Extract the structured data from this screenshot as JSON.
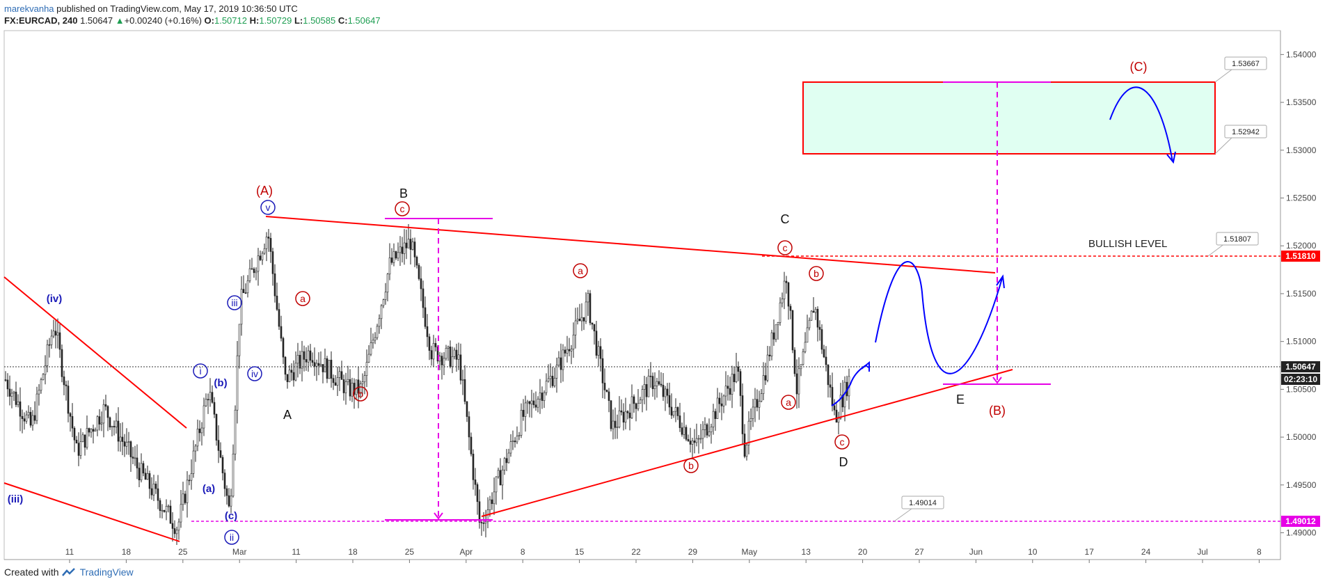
{
  "header": {
    "user": "marekvanha",
    "published": " published on TradingView.com, May 17, 2019 10:36:50 UTC",
    "symbol": "FX:EURCAD, 240",
    "last": "1.50647",
    "change": "+0.00240 (+0.16%)",
    "o_label": "O:",
    "o_val": "1.50712",
    "h_label": "H:",
    "h_val": "1.50729",
    "l_label": "L:",
    "l_val": "1.50585",
    "c_label": "C:",
    "c_val": "1.50647"
  },
  "footer": {
    "created": "Created with",
    "brand": "TradingView"
  },
  "colors": {
    "red": "#ff0000",
    "magenta": "#e600e6",
    "blue": "#0000ff",
    "target_fill": "#e0fff2"
  },
  "chart_data": {
    "type": "candlestick",
    "instrument": "FX:EURCAD",
    "interval": "240",
    "ylim": [
      1.4872,
      1.5425
    ],
    "y_ticks": [
      "1.54000",
      "1.53500",
      "1.53000",
      "1.52500",
      "1.52000",
      "1.51500",
      "1.51000",
      "1.50500",
      "1.50000",
      "1.49500",
      "1.49000"
    ],
    "x_ticks": [
      "11",
      "18",
      "25",
      "Mar",
      "11",
      "18",
      "25",
      "Apr",
      "8",
      "15",
      "22",
      "29",
      "May",
      "13",
      "20",
      "27",
      "Jun",
      "10",
      "17",
      "24",
      "Jul",
      "8"
    ],
    "price_tags": {
      "last": "1.50647",
      "countdown": "02:23:10",
      "bullish": "1.51810",
      "support": "1.49012"
    },
    "callouts": [
      "1.53667",
      "1.52942",
      "1.51807",
      "1.49014"
    ],
    "annotations": {
      "bullish_level": "BULLISH LEVEL",
      "waves_red": [
        "(A)",
        "(B)",
        "(C)"
      ],
      "waves_black": [
        "A",
        "B",
        "C",
        "D",
        "E"
      ],
      "waves_blue": [
        "(iv)",
        "(iii)",
        "(a)",
        "(b)",
        "(c)"
      ]
    },
    "circled": {
      "v": "v",
      "i": "i",
      "ii": "ii",
      "iii": "iii",
      "iv": "iv",
      "a": "a",
      "b": "b",
      "c": "c"
    }
  }
}
